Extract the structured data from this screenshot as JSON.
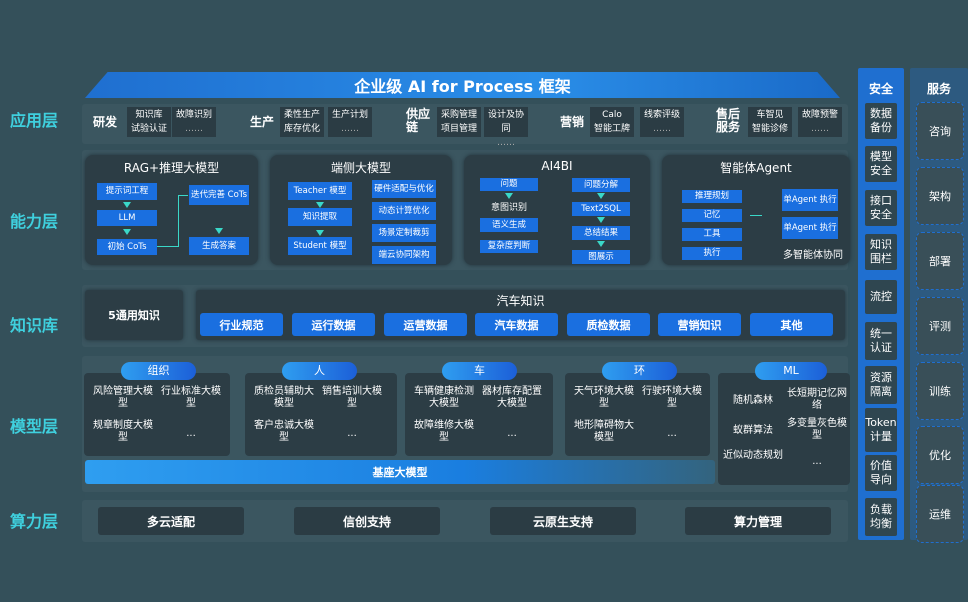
{
  "title": "企业级 AI for Process 框架",
  "layers": [
    "应用层",
    "能力层",
    "知识库",
    "模型层",
    "算力层"
  ],
  "app": [
    {
      "name": "研发",
      "items": [
        "知识库",
        "故障识别",
        "试验认证",
        "……"
      ]
    },
    {
      "name": "生产",
      "items": [
        "柔性生产",
        "生产计划",
        "库存优化",
        "……"
      ]
    },
    {
      "name": "供应链",
      "items": [
        "采购管理",
        "设计及协同",
        "项目管理",
        "……"
      ]
    },
    {
      "name": "营销",
      "items": [
        "Calo",
        "线索评级",
        "智能工牌",
        "……"
      ]
    },
    {
      "name": "售后服务",
      "items": [
        "车智见",
        "故障预警",
        "智能诊修",
        "……"
      ]
    }
  ],
  "capability": {
    "rag": {
      "title": "RAG+推理大模型",
      "items": [
        "提示词工程",
        "LLM",
        "初始 CoTs",
        "迭代完善 CoTs",
        "生成答案"
      ]
    },
    "edge": {
      "title": "端侧大模型",
      "left": [
        "Teacher 模型",
        "知识提取",
        "Student 模型"
      ],
      "right": [
        "硬件适配与优化",
        "动态计算优化",
        "场景定制裁剪",
        "端云协同架构"
      ]
    },
    "ai4bi": {
      "title": "AI4BI",
      "left": [
        "问题",
        "意图识别",
        "语义生成",
        "复杂度判断"
      ],
      "right": [
        "问题分解",
        "Text2SQL",
        "总结结果",
        "图展示"
      ]
    },
    "agent": {
      "title": "智能体Agent",
      "left": [
        "推理规划",
        "记忆",
        "工具",
        "执行"
      ],
      "right": [
        "单Agent 执行",
        "单Agent 执行"
      ],
      "footer": "多智能体协同"
    }
  },
  "knowledge": {
    "general": "5通用知识",
    "auto_title": "汽车知识",
    "items": [
      "行业规范",
      "运行数据",
      "运营数据",
      "汽车数据",
      "质检数据",
      "营销知识",
      "其他"
    ]
  },
  "models": [
    {
      "tag": "组织",
      "items": [
        "风险管理大模型",
        "行业标准大模型",
        "规章制度大模型",
        "..."
      ]
    },
    {
      "tag": "人",
      "items": [
        "质检员辅助大模型",
        "销售培训大模型",
        "客户忠诚大模型",
        "..."
      ]
    },
    {
      "tag": "车",
      "items": [
        "车辆健康检测大模型",
        "器材库存配置大模型",
        "故障维修大模型",
        "..."
      ]
    },
    {
      "tag": "环",
      "items": [
        "天气环境大模型",
        "行驶环境大模型",
        "地形障碍物大模型",
        "..."
      ]
    },
    {
      "tag": "ML",
      "items": [
        "随机森林",
        "长短期记忆网络",
        "蚁群算法",
        "多变量灰色模型",
        "近似动态规划",
        "..."
      ]
    }
  ],
  "base_model": "基座大模型",
  "compute": [
    "多云适配",
    "信创支持",
    "云原生支持",
    "算力管理"
  ],
  "security": {
    "title": "安全",
    "items": [
      "数据备份",
      "模型安全",
      "接口安全",
      "知识围栏",
      "流控",
      "统一认证",
      "资源隔离",
      "Token计量",
      "价值导向",
      "负载均衡"
    ]
  },
  "services": {
    "title": "服务",
    "items": [
      "咨询",
      "架构",
      "部署",
      "评测",
      "训练",
      "优化",
      "运维"
    ]
  },
  "colors": {
    "background": "#34505a",
    "accent": "#1a6fe0",
    "layer_label": "#3fd0de"
  }
}
